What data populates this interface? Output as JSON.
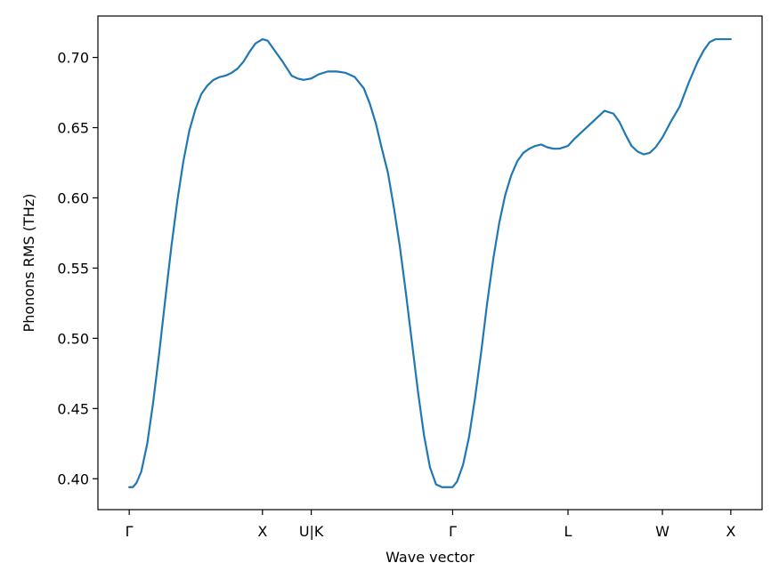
{
  "chart_data": {
    "type": "line",
    "title": "",
    "xlabel": "Wave vector",
    "ylabel": "Phonons RMS (THz)",
    "grid": false,
    "legend": "none",
    "ylim": [
      0.378,
      0.7295
    ],
    "y_ticks": [
      0.4,
      0.45,
      0.5,
      0.55,
      0.6,
      0.65,
      0.7
    ],
    "y_tick_labels": [
      "0.40",
      "0.45",
      "0.50",
      "0.55",
      "0.60",
      "0.65",
      "0.70"
    ],
    "xlim": [
      -0.052,
      1.052
    ],
    "x_ticks": [
      0.0,
      0.2215,
      0.3026,
      0.5376,
      0.7294,
      0.8863,
      1.0
    ],
    "x_tick_labels": [
      "Γ",
      "X",
      "U|K",
      "Γ",
      "L",
      "W",
      "X"
    ],
    "line_color": "#1f77b4",
    "series": [
      {
        "x": [
          0.0,
          0.006,
          0.012,
          0.02,
          0.03,
          0.04,
          0.05,
          0.06,
          0.07,
          0.08,
          0.09,
          0.1,
          0.11,
          0.12,
          0.13,
          0.14,
          0.15,
          0.16,
          0.17,
          0.18,
          0.19,
          0.2,
          0.21,
          0.2215,
          0.23,
          0.24,
          0.255,
          0.27,
          0.28,
          0.29,
          0.3026,
          0.315,
          0.33,
          0.345,
          0.36,
          0.375,
          0.39,
          0.4,
          0.41,
          0.415,
          0.42,
          0.43,
          0.44,
          0.45,
          0.46,
          0.47,
          0.48,
          0.49,
          0.5,
          0.51,
          0.52,
          0.53,
          0.5376,
          0.545,
          0.555,
          0.565,
          0.575,
          0.585,
          0.595,
          0.605,
          0.615,
          0.625,
          0.635,
          0.645,
          0.655,
          0.665,
          0.675,
          0.685,
          0.695,
          0.705,
          0.715,
          0.7294,
          0.74,
          0.75,
          0.76,
          0.775,
          0.79,
          0.805,
          0.815,
          0.825,
          0.835,
          0.845,
          0.855,
          0.865,
          0.875,
          0.8863,
          0.9,
          0.915,
          0.93,
          0.945,
          0.955,
          0.965,
          0.975,
          0.985,
          0.993,
          1.0
        ],
        "y": [
          0.394,
          0.394,
          0.397,
          0.405,
          0.425,
          0.455,
          0.49,
          0.528,
          0.565,
          0.598,
          0.626,
          0.648,
          0.663,
          0.674,
          0.68,
          0.684,
          0.686,
          0.687,
          0.689,
          0.692,
          0.697,
          0.704,
          0.71,
          0.713,
          0.712,
          0.706,
          0.697,
          0.687,
          0.685,
          0.684,
          0.685,
          0.688,
          0.69,
          0.69,
          0.689,
          0.686,
          0.678,
          0.667,
          0.653,
          0.644,
          0.635,
          0.618,
          0.593,
          0.565,
          0.532,
          0.497,
          0.462,
          0.431,
          0.408,
          0.396,
          0.394,
          0.394,
          0.394,
          0.398,
          0.41,
          0.43,
          0.458,
          0.49,
          0.525,
          0.556,
          0.582,
          0.602,
          0.616,
          0.626,
          0.632,
          0.635,
          0.637,
          0.638,
          0.636,
          0.635,
          0.635,
          0.637,
          0.642,
          0.646,
          0.65,
          0.656,
          0.662,
          0.66,
          0.654,
          0.645,
          0.637,
          0.633,
          0.631,
          0.632,
          0.636,
          0.643,
          0.654,
          0.665,
          0.682,
          0.697,
          0.705,
          0.711,
          0.713,
          0.713,
          0.713,
          0.713
        ]
      }
    ]
  }
}
